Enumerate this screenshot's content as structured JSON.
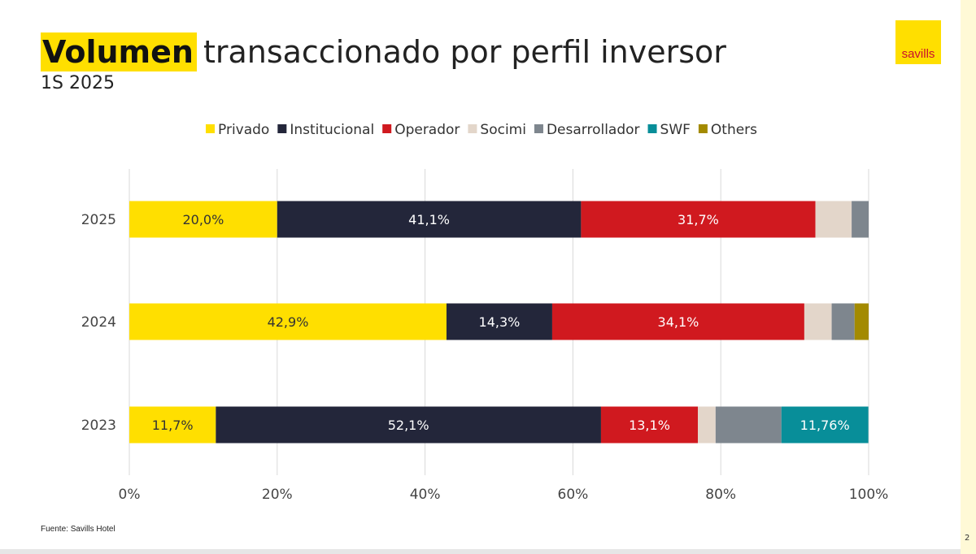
{
  "title": {
    "highlight": "Volumen",
    "rest": "transaccionado por perfil inversor",
    "subtitle": "1S 2025"
  },
  "logo": {
    "text": "savills"
  },
  "source": "Fuente: Savills Hotel",
  "page_number": "2",
  "colors": {
    "Privado": "#ffdf00",
    "Institucional": "#23263a",
    "Operador": "#d0191f",
    "Socimi": "#e3d6ca",
    "Desarrollador": "#7e868e",
    "SWF": "#088e99",
    "Others": "#a38a00"
  },
  "chart_data": {
    "type": "bar",
    "orientation": "horizontal",
    "stacked": true,
    "categories": [
      "2025",
      "2024",
      "2023"
    ],
    "series": [
      {
        "name": "Privado",
        "values": [
          20.0,
          42.9,
          11.7
        ],
        "labels": [
          "20,0%",
          "42,9%",
          "11,7%"
        ]
      },
      {
        "name": "Institucional",
        "values": [
          41.1,
          14.3,
          52.1
        ],
        "labels": [
          "41,1%",
          "14,3%",
          "52,1%"
        ]
      },
      {
        "name": "Operador",
        "values": [
          31.7,
          34.1,
          13.1
        ],
        "labels": [
          "31,7%",
          "34,1%",
          "13,1%"
        ]
      },
      {
        "name": "Socimi",
        "values": [
          4.9,
          3.7,
          2.4
        ],
        "labels": [
          "",
          "",
          ""
        ]
      },
      {
        "name": "Desarrollador",
        "values": [
          2.3,
          3.1,
          8.9
        ],
        "labels": [
          "",
          "",
          ""
        ]
      },
      {
        "name": "SWF",
        "values": [
          0,
          0,
          11.76
        ],
        "labels": [
          "",
          "",
          "11,76%"
        ]
      },
      {
        "name": "Others",
        "values": [
          0,
          1.9,
          0
        ],
        "labels": [
          "",
          "",
          ""
        ]
      }
    ],
    "xaxis": {
      "ticks": [
        0,
        20,
        40,
        60,
        80,
        100
      ],
      "tick_labels": [
        "0%",
        "20%",
        "40%",
        "60%",
        "80%",
        "100%"
      ],
      "xlim": [
        0,
        100
      ]
    },
    "grid": "vertical",
    "legend": "top"
  }
}
